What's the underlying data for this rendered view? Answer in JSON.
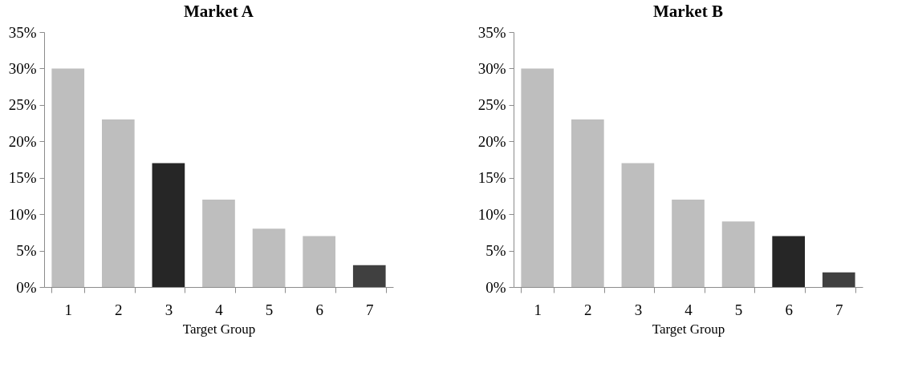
{
  "chart_data": [
    {
      "type": "bar",
      "title": "Market A",
      "xlabel": "Target Group",
      "categories": [
        "1",
        "2",
        "3",
        "4",
        "5",
        "6",
        "7"
      ],
      "values": [
        30,
        23,
        17,
        12,
        8,
        7,
        3
      ],
      "colors": [
        "#bebebe",
        "#bebebe",
        "#262626",
        "#bebebe",
        "#bebebe",
        "#bebebe",
        "#404040"
      ],
      "ylim": [
        0,
        35
      ],
      "yticks": [
        {
          "value": 0,
          "label": "0%"
        },
        {
          "value": 5,
          "label": "5%"
        },
        {
          "value": 10,
          "label": "10%"
        },
        {
          "value": 15,
          "label": "15%"
        },
        {
          "value": 20,
          "label": "20%"
        },
        {
          "value": 25,
          "label": "25%"
        },
        {
          "value": 30,
          "label": "30%"
        },
        {
          "value": 35,
          "label": "35%"
        }
      ]
    },
    {
      "type": "bar",
      "title": "Market B",
      "xlabel": "Target Group",
      "categories": [
        "1",
        "2",
        "3",
        "4",
        "5",
        "6",
        "7"
      ],
      "values": [
        30,
        23,
        17,
        12,
        9,
        7,
        2
      ],
      "colors": [
        "#bebebe",
        "#bebebe",
        "#bebebe",
        "#bebebe",
        "#bebebe",
        "#262626",
        "#404040"
      ],
      "ylim": [
        0,
        35
      ],
      "yticks": [
        {
          "value": 0,
          "label": "0%"
        },
        {
          "value": 5,
          "label": "5%"
        },
        {
          "value": 10,
          "label": "10%"
        },
        {
          "value": 15,
          "label": "15%"
        },
        {
          "value": 20,
          "label": "20%"
        },
        {
          "value": 25,
          "label": "25%"
        },
        {
          "value": 30,
          "label": "30%"
        },
        {
          "value": 35,
          "label": "35%"
        }
      ]
    }
  ]
}
